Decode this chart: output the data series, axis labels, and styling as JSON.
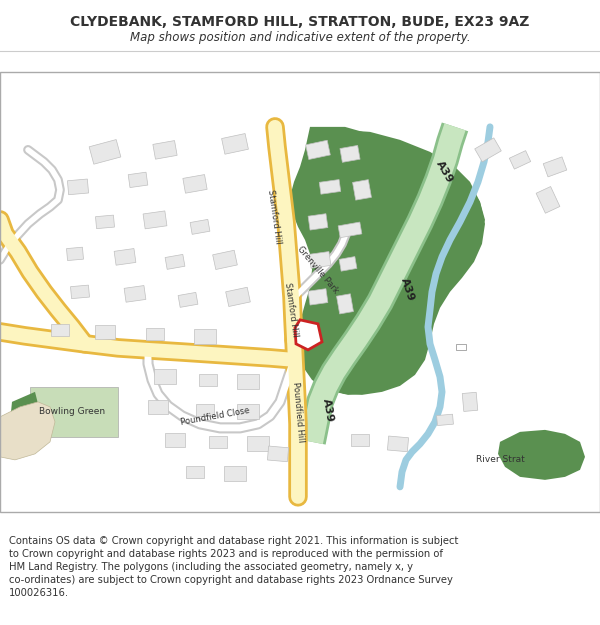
{
  "title": "CLYDEBANK, STAMFORD HILL, STRATTON, BUDE, EX23 9AZ",
  "subtitle": "Map shows position and indicative extent of the property.",
  "footer": "Contains OS data © Crown copyright and database right 2021. This information is subject\nto Crown copyright and database rights 2023 and is reproduced with the permission of\nHM Land Registry. The polygons (including the associated geometry, namely x, y\nco-ordinates) are subject to Crown copyright and database rights 2023 Ordnance Survey\n100026316.",
  "map_bg": "#ffffff",
  "road_yellow_fill": "#fdf5c0",
  "road_yellow_edge": "#e8b840",
  "a39_green_fill": "#c8e6c0",
  "a39_green_edge": "#8bc08a",
  "green_dark": "#5a9050",
  "green_light": "#c8ddb8",
  "river_blue": "#9dcde0",
  "building_fill": "#e8e8e8",
  "building_outline": "#c0c0c0",
  "road_gray_fill": "#ffffff",
  "road_gray_edge": "#c8c8c8",
  "highlight_red": "#cc2222",
  "text_dark": "#333333",
  "title_fontsize": 10,
  "subtitle_fontsize": 8.5,
  "footer_fontsize": 7.2
}
